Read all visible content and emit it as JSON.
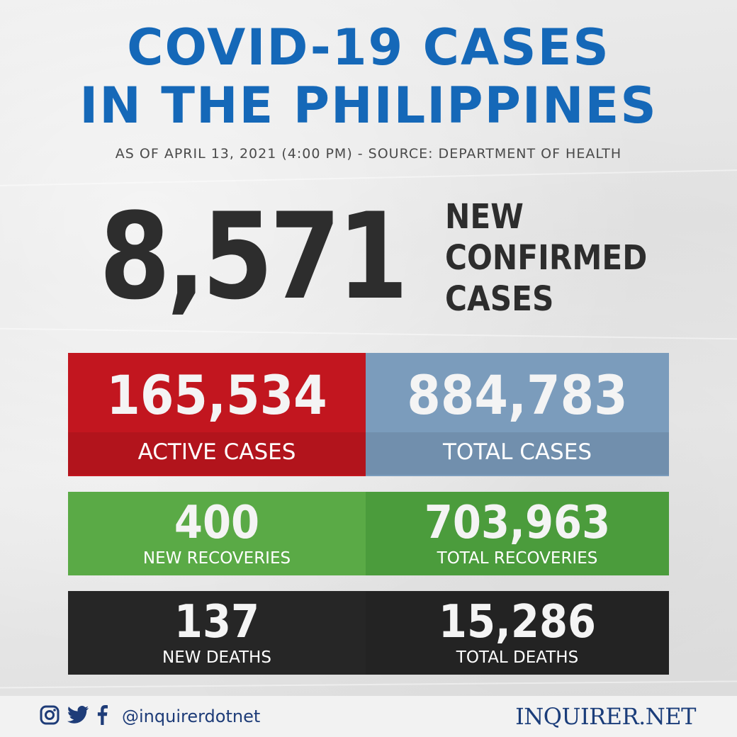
{
  "header": {
    "title_line1": "COVID-19 CASES",
    "title_line2": "IN THE PHILIPPINES",
    "subtitle": "AS OF APRIL 13, 2021 (4:00 PM) - SOURCE: DEPARTMENT OF HEALTH"
  },
  "headline": {
    "value": "8,571",
    "label_line1": "NEW",
    "label_line2": "CONFIRMED",
    "label_line3": "CASES"
  },
  "stats": {
    "active_cases": {
      "value": "165,534",
      "label": "ACTIVE CASES"
    },
    "total_cases": {
      "value": "884,783",
      "label": "TOTAL CASES"
    },
    "new_recoveries": {
      "value": "400",
      "label": "NEW RECOVERIES"
    },
    "total_recoveries": {
      "value": "703,963",
      "label": "TOTAL RECOVERIES"
    },
    "new_deaths": {
      "value": "137",
      "label": "NEW DEATHS"
    },
    "total_deaths": {
      "value": "15,286",
      "label": "TOTAL DEATHS"
    }
  },
  "footer": {
    "social_icons": [
      "instagram-icon",
      "twitter-icon",
      "facebook-icon"
    ],
    "handle": "@inquirerdotnet",
    "brand": "INQUIRER.NET"
  },
  "colors": {
    "title_blue": "#1568b8",
    "active_red": "#c2161f",
    "total_blue_gray": "#7b9cbc",
    "recoveries_green": "#5aaa46",
    "total_recoveries_green": "#4b9c3c",
    "deaths_black": "#262626",
    "brand_navy": "#1b3d7a"
  }
}
